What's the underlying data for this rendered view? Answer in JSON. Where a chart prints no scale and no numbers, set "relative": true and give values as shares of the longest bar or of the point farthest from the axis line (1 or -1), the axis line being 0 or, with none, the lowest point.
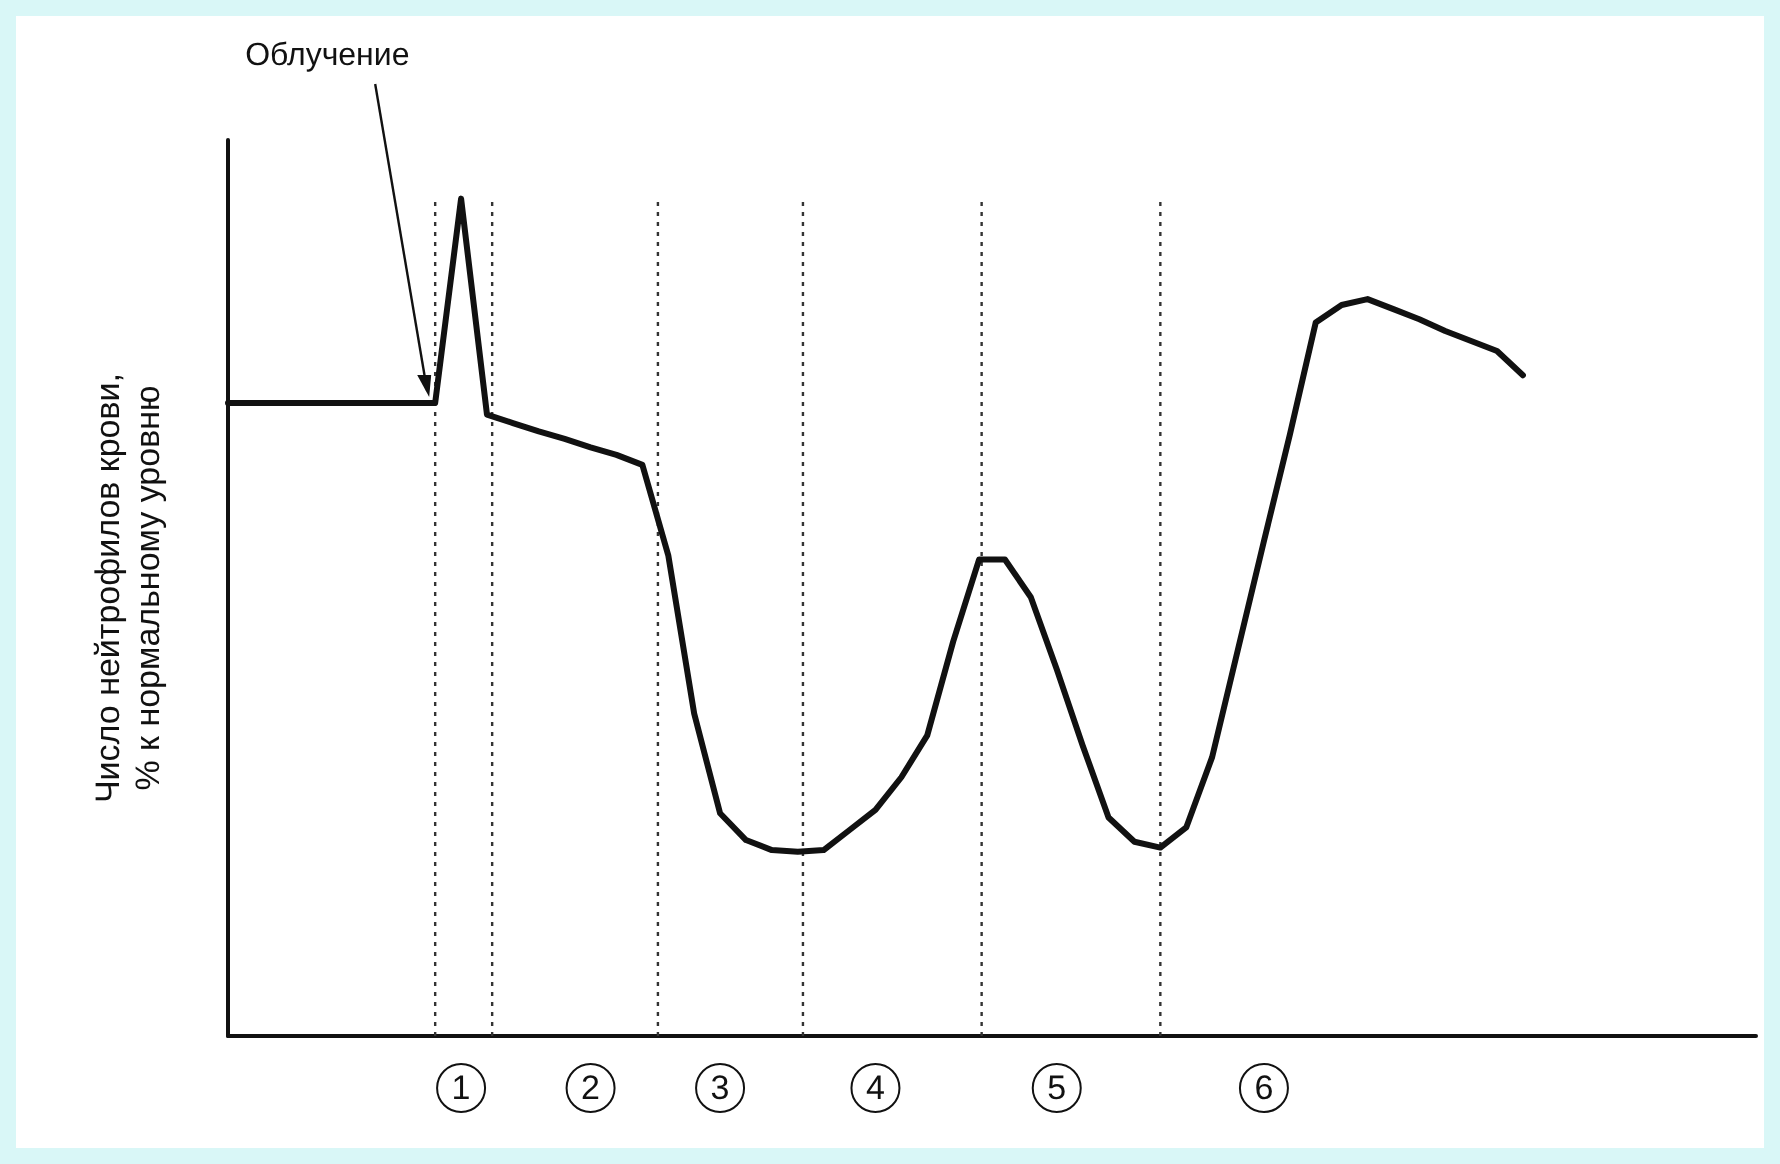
{
  "chart_data": {
    "type": "line",
    "relative": true,
    "ylabel": "Число нейтрофилов крови, % к нормальному уровню",
    "marker": "none",
    "line_style": "solid",
    "categories": [
      null,
      null,
      null,
      null,
      null,
      null,
      null,
      null,
      null,
      "1",
      null,
      null,
      null,
      null,
      "2",
      null,
      null,
      null,
      null,
      "3",
      null,
      null,
      null,
      null,
      null,
      "4",
      null,
      null,
      null,
      null,
      null,
      null,
      "5",
      null,
      null,
      null,
      null,
      null,
      null,
      null,
      "6",
      null,
      null,
      null,
      null,
      null,
      null,
      null,
      null,
      null,
      null,
      null,
      null,
      null,
      null,
      null,
      null,
      null,
      null,
      null
    ],
    "series": [
      {
        "color": "#111111",
        "values": [
          0.756,
          0.756,
          0.756,
          0.756,
          0.756,
          0.756,
          0.756,
          0.756,
          0.756,
          1,
          0.742,
          0.732,
          0.722,
          0.713,
          0.703,
          0.694,
          0.682,
          0.574,
          0.385,
          0.266,
          0.234,
          0.222,
          0.22,
          0.222,
          0.246,
          0.27,
          0.309,
          0.359,
          0.471,
          0.569,
          0.569,
          0.524,
          0.438,
          0.347,
          0.261,
          0.232,
          0.225,
          0.249,
          0.333,
          0.462,
          0.591,
          0.718,
          0.852,
          0.873,
          0.88,
          0.868,
          0.856,
          0.842,
          0.83,
          0.818,
          0.789,
          null,
          null,
          null,
          null,
          null,
          null,
          null,
          null,
          null
        ]
      }
    ],
    "annotations": [
      "Облучение"
    ]
  }
}
